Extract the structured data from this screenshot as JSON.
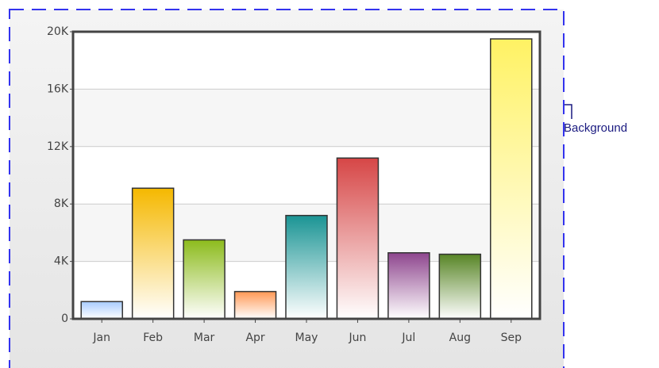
{
  "chart_data": {
    "type": "bar",
    "categories": [
      "Jan",
      "Feb",
      "Mar",
      "Apr",
      "May",
      "Jun",
      "Jul",
      "Aug",
      "Sep"
    ],
    "values": [
      1200,
      9100,
      5500,
      1900,
      7200,
      11200,
      4600,
      4500,
      19500
    ],
    "colors": [
      "#a8ccff",
      "#f5b800",
      "#8cbb1c",
      "#ff9955",
      "#1a9494",
      "#d64646",
      "#8e468e",
      "#588526",
      "#fff263"
    ],
    "ylim": [
      0,
      20000
    ],
    "yticks": [
      0,
      {
        "value": 4000,
        "label": "4K"
      },
      {
        "value": 8000,
        "label": "8K"
      },
      {
        "value": 12000,
        "label": "12K"
      },
      {
        "value": 16000,
        "label": "16K"
      },
      {
        "value": 20000,
        "label": "20K"
      }
    ],
    "grid": true,
    "annotation": "Background"
  }
}
